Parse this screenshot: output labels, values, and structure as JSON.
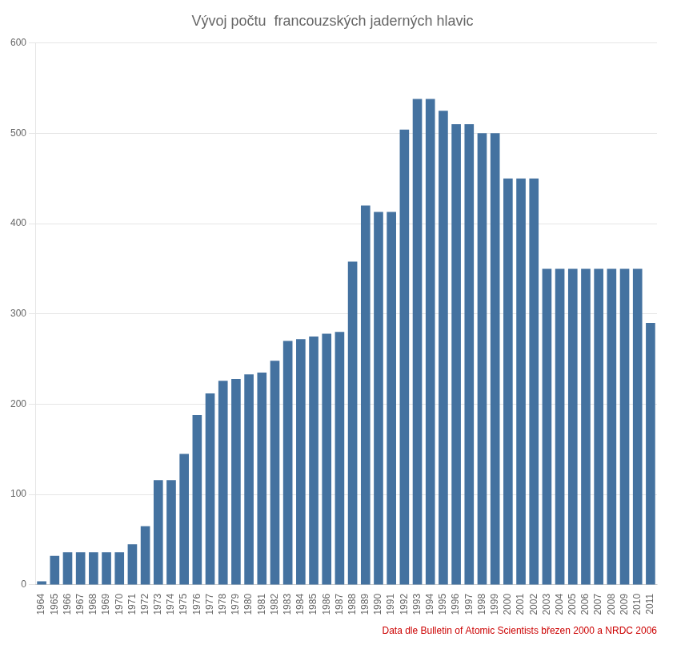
{
  "chart_data": {
    "type": "bar",
    "title": "Vývoj počtu  francouzských jaderných hlavic",
    "categories": [
      "1964",
      "1965",
      "1966",
      "1967",
      "1968",
      "1969",
      "1970",
      "1971",
      "1972",
      "1973",
      "1974",
      "1975",
      "1976",
      "1977",
      "1978",
      "1979",
      "1980",
      "1981",
      "1982",
      "1983",
      "1984",
      "1985",
      "1986",
      "1987",
      "1988",
      "1989",
      "1990",
      "1991",
      "1992",
      "1993",
      "1994",
      "1995",
      "1996",
      "1997",
      "1998",
      "1999",
      "2000",
      "2001",
      "2002",
      "2003",
      "2004",
      "2005",
      "2006",
      "2007",
      "2008",
      "2009",
      "2010",
      "2011"
    ],
    "values": [
      4,
      32,
      36,
      36,
      36,
      36,
      36,
      45,
      65,
      116,
      116,
      145,
      188,
      212,
      226,
      228,
      233,
      235,
      248,
      270,
      272,
      275,
      278,
      280,
      358,
      420,
      413,
      413,
      504,
      538,
      538,
      525,
      510,
      510,
      500,
      500,
      450,
      450,
      450,
      350,
      350,
      350,
      350,
      350,
      350,
      350,
      350,
      290
    ],
    "color": "#4472A0",
    "ylim": [
      0,
      600
    ],
    "yticks": [
      0,
      100,
      200,
      300,
      400,
      500,
      600
    ],
    "grid": true,
    "annotations": [
      {
        "text": "Data dle Bulletin of Atomic Scientists březen 2000 a NRDC 2006",
        "color": "#CC0000"
      }
    ]
  }
}
